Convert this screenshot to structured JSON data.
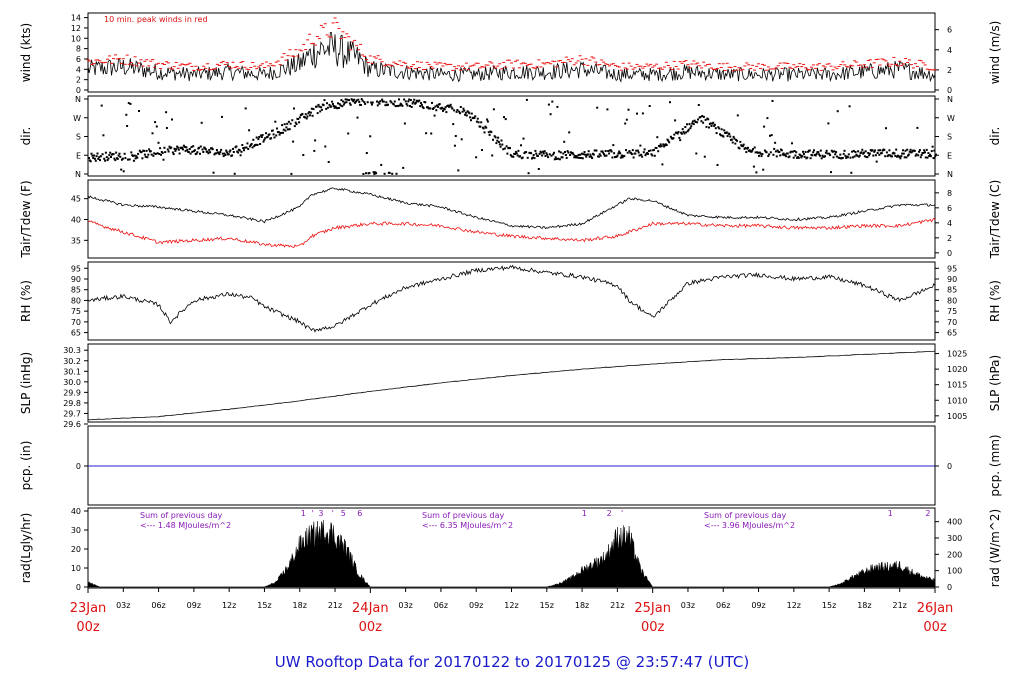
{
  "title": "UW Rooftop Data for 20170122  to  20170125 @ 23:57:47  (UTC)",
  "colors": {
    "title": "#1a1acc",
    "date_labels": "#dd1111",
    "peak": "#ee1111",
    "dew": "#ee1111",
    "solar_text": "#8a1ab8",
    "pcp": "#2222cc",
    "frame": "#000000"
  },
  "time_axis": {
    "ticks": [
      "03z",
      "06z",
      "09z",
      "12z",
      "15z",
      "18z",
      "21z",
      "03z",
      "06z",
      "09z",
      "12z",
      "15z",
      "18z",
      "21z",
      "03z",
      "06z",
      "09z",
      "12z",
      "15z",
      "18z",
      "21z"
    ],
    "date_labels": [
      {
        "date": "23Jan",
        "time": "00z"
      },
      {
        "date": "24Jan",
        "time": "00z"
      },
      {
        "date": "25Jan",
        "time": "00z"
      },
      {
        "date": "26Jan",
        "time": "00z"
      }
    ]
  },
  "panels": [
    {
      "key": "wind",
      "left_label": "wind (kts)",
      "right_label": "wind (m/s)",
      "left_ticks": [
        "0",
        "2",
        "4",
        "6",
        "8",
        "10",
        "12",
        "14"
      ],
      "right_ticks": [
        "0",
        "2",
        "4",
        "6"
      ],
      "annotation": "10 min. peak winds in red"
    },
    {
      "key": "dir",
      "left_label": "dir.",
      "right_label": "dir.",
      "left_ticks": [
        "N",
        "E",
        "S",
        "W",
        "N"
      ],
      "right_ticks": [
        "N",
        "E",
        "S",
        "W",
        "N"
      ]
    },
    {
      "key": "temp",
      "left_label": "Tair/Tdew (F)",
      "right_label": "Tair/Tdew (C)",
      "left_ticks": [
        "35",
        "40",
        "45"
      ],
      "right_ticks": [
        "0",
        "2",
        "4",
        "6",
        "8"
      ]
    },
    {
      "key": "rh",
      "left_label": "RH (%)",
      "right_label": "RH (%)",
      "left_ticks": [
        "65",
        "70",
        "75",
        "80",
        "85",
        "90",
        "95"
      ],
      "right_ticks": [
        "65",
        "70",
        "75",
        "80",
        "85",
        "90",
        "95"
      ]
    },
    {
      "key": "slp",
      "left_label": "SLP (inHg)",
      "right_label": "SLP (hPa)",
      "left_ticks": [
        "29.6",
        "29.7",
        "29.8",
        "29.9",
        "30.0",
        "30.1",
        "30.2",
        "30.3"
      ],
      "right_ticks": [
        "1005",
        "1010",
        "1015",
        "1020",
        "1025"
      ]
    },
    {
      "key": "pcp",
      "left_label": "pcp. (in)",
      "right_label": "pcp. (mm)",
      "left_ticks": [
        "0"
      ],
      "right_ticks": [
        "0"
      ]
    },
    {
      "key": "rad",
      "left_label": "rad(Lgly/hr)",
      "right_label": "rad (W/m^2)",
      "left_ticks": [
        "0",
        "10",
        "20",
        "30",
        "40"
      ],
      "right_ticks": [
        "0",
        "100",
        "200",
        "300",
        "400"
      ]
    }
  ],
  "solar_notes": [
    {
      "line1": "Sum of previous day",
      "line2": "<--- 1.48 MJoules/m^2"
    },
    {
      "line1": "Sum of previous day",
      "line2": "<--- 6.35 MJoules/m^2"
    },
    {
      "line1": "Sum of previous day",
      "line2": "<--- 3.96 MJoules/m^2"
    }
  ],
  "rad_marks": [
    {
      "day": 0.0,
      "hour": 18.3,
      "label": "1"
    },
    {
      "day": 0.0,
      "hour": 19.1,
      "label": "'"
    },
    {
      "day": 0.0,
      "hour": 19.8,
      "label": "3"
    },
    {
      "day": 0.0,
      "hour": 20.8,
      "label": "'"
    },
    {
      "day": 0.0,
      "hour": 21.7,
      "label": "5"
    },
    {
      "day": 0.0,
      "hour": 23.1,
      "label": "6"
    },
    {
      "day": 1.0,
      "hour": 18.2,
      "label": "1"
    },
    {
      "day": 1.0,
      "hour": 20.3,
      "label": "2"
    },
    {
      "day": 1.0,
      "hour": 21.4,
      "label": "'"
    },
    {
      "day": 2.0,
      "hour": 20.2,
      "label": "1"
    },
    {
      "day": 2.0,
      "hour": 23.4,
      "label": "2"
    }
  ],
  "chart_data": {
    "type": "line",
    "title": "UW Rooftop Data for 20170122  to  20170125 @ 23:57:47  (UTC)",
    "x_range_hours_utc": [
      0,
      72
    ],
    "x_start": "23Jan 00z",
    "x_end": "26Jan 00z",
    "series": {
      "wind_kts": {
        "x_hours": [
          0,
          3,
          6,
          9,
          12,
          15,
          18,
          19,
          20,
          21,
          22,
          23,
          24,
          27,
          30,
          33,
          36,
          39,
          42,
          45,
          48,
          51,
          54,
          57,
          60,
          63,
          66,
          69,
          72
        ],
        "values": [
          4,
          4.5,
          3.5,
          3,
          3.5,
          3,
          5,
          7,
          8,
          8,
          7,
          6,
          4,
          3.5,
          3,
          3,
          3.5,
          3.5,
          4,
          3,
          3,
          3.5,
          3,
          3,
          3,
          3,
          3.5,
          4,
          3
        ]
      },
      "wind_peak_kts": {
        "x_hours": [
          0,
          3,
          6,
          9,
          12,
          15,
          18,
          19,
          20,
          21,
          22,
          23,
          24,
          27,
          30,
          33,
          36,
          39,
          42,
          45,
          48,
          51,
          54,
          57,
          60,
          63,
          66,
          69,
          72
        ],
        "values": [
          5.5,
          6,
          5,
          4.5,
          5,
          4.5,
          7.5,
          10,
          11,
          12,
          10,
          8,
          6,
          5,
          4.5,
          4.5,
          5,
          5,
          6,
          4.5,
          4.5,
          5,
          4.5,
          4.5,
          4.5,
          4.5,
          5,
          5.5,
          4.5
        ]
      },
      "direction_deg": {
        "x_hours": [
          0,
          4,
          8,
          12,
          16,
          20,
          24,
          28,
          32,
          36,
          40,
          44,
          48,
          52,
          56,
          60,
          64,
          68,
          72
        ],
        "values": [
          80,
          90,
          120,
          100,
          200,
          330,
          350,
          340,
          300,
          95,
          90,
          95,
          100,
          270,
          110,
          95,
          95,
          100,
          95
        ]
      },
      "air_temp_F": {
        "x_hours": [
          0,
          3,
          6,
          9,
          12,
          15,
          18,
          19,
          21,
          24,
          27,
          30,
          33,
          36,
          39,
          42,
          45,
          46,
          48,
          51,
          54,
          57,
          60,
          63,
          66,
          69,
          72
        ],
        "values": [
          45.5,
          43.5,
          43,
          42,
          41,
          39.5,
          43,
          46,
          47.5,
          46,
          44,
          43,
          40.5,
          38.5,
          38,
          39,
          43.5,
          45,
          44.5,
          41,
          40.5,
          40.5,
          40,
          40.5,
          42,
          43.5,
          43.5
        ]
      },
      "dew_point_F": {
        "x_hours": [
          0,
          3,
          6,
          9,
          12,
          15,
          18,
          19,
          21,
          24,
          27,
          30,
          33,
          36,
          39,
          42,
          45,
          46,
          48,
          51,
          54,
          57,
          60,
          63,
          66,
          69,
          72
        ],
        "values": [
          39.5,
          37,
          34.5,
          35,
          35.5,
          34,
          33.5,
          36,
          38,
          39,
          39,
          38.5,
          37,
          36,
          35.5,
          35,
          36,
          37,
          39,
          39,
          38.5,
          38.5,
          38,
          38,
          38.5,
          38.5,
          40
        ]
      },
      "rh_percent": {
        "x_hours": [
          0,
          3,
          6,
          7,
          9,
          12,
          14,
          15,
          18,
          19,
          21,
          24,
          27,
          30,
          33,
          36,
          39,
          42,
          45,
          46,
          48,
          51,
          54,
          57,
          60,
          63,
          66,
          69,
          72
        ],
        "values": [
          80,
          82,
          78,
          70,
          80,
          83,
          81,
          77,
          70,
          66,
          68,
          78,
          86,
          90,
          94,
          95.5,
          93,
          91,
          87,
          80,
          72,
          88,
          91,
          92,
          90,
          91,
          87,
          80,
          87
        ]
      },
      "slp_inHg": {
        "x_hours": [
          0,
          6,
          12,
          18,
          24,
          30,
          36,
          42,
          48,
          54,
          60,
          66,
          72
        ],
        "values": [
          29.64,
          29.67,
          29.74,
          29.82,
          29.91,
          29.99,
          30.06,
          30.12,
          30.17,
          30.21,
          30.23,
          30.26,
          30.29
        ]
      },
      "precip_in": {
        "x_hours": [
          0,
          72
        ],
        "values": [
          0,
          0
        ]
      },
      "solar_Lgly_hr": {
        "x_hours": [
          0,
          1,
          15,
          16,
          17,
          18,
          19,
          20,
          20.5,
          21,
          22,
          23,
          24,
          39,
          40,
          41,
          42,
          43,
          44,
          45,
          46,
          47,
          48,
          63,
          64,
          65,
          66,
          67,
          68,
          69,
          70,
          71,
          72
        ],
        "values": [
          3,
          0,
          0,
          3,
          12,
          25,
          31,
          33,
          34,
          30,
          22,
          8,
          0,
          0,
          2,
          5,
          10,
          14,
          18,
          30,
          30,
          10,
          0,
          0,
          2,
          6,
          9,
          12,
          12,
          13,
          9,
          6,
          4
        ]
      }
    }
  }
}
